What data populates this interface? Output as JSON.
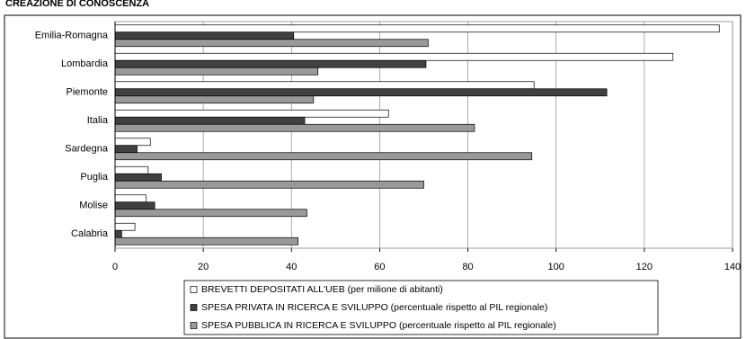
{
  "chart_data": {
    "type": "bar",
    "orientation": "horizontal",
    "title": "CREAZIONE DI CONOSCENZA",
    "categories": [
      "Emilia-Romagna",
      "Lombardia",
      "Piemonte",
      "Italia",
      "Sardegna",
      "Puglia",
      "Molise",
      "Calabria"
    ],
    "series": [
      {
        "name": "BREVETTI DEPOSITATI ALL'UEB (per milione di abitanti)",
        "color": "#ffffff",
        "values": [
          137,
          126.5,
          95,
          62,
          8,
          7.5,
          7,
          4.5
        ]
      },
      {
        "name": "SPESA PRIVATA IN RICERCA E SVILUPPO (percentuale rispetto al PIL regionale)",
        "color": "#404040",
        "values": [
          40.5,
          70.5,
          111.5,
          43,
          5,
          10.5,
          9,
          1.5
        ]
      },
      {
        "name": "SPESA PUBBLICA IN RICERCA E SVILUPPO (percentuale rispetto al PIL regionale)",
        "color": "#999999",
        "values": [
          71,
          46,
          45,
          81.5,
          94.5,
          70,
          43.5,
          41.5
        ]
      }
    ],
    "xlim": [
      0,
      140
    ],
    "xticks": [
      0,
      20,
      40,
      60,
      80,
      100,
      120,
      140
    ],
    "grid": true,
    "legend": "bottom"
  }
}
